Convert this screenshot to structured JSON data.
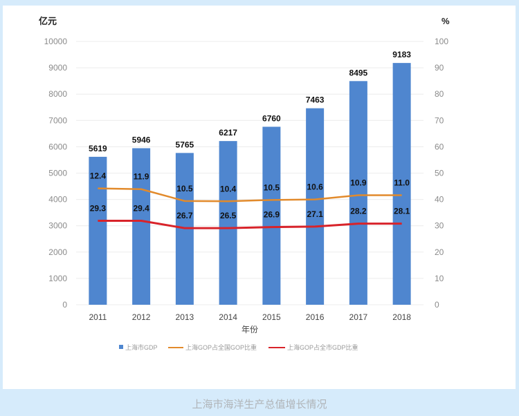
{
  "chart_data": {
    "type": "bar",
    "categories": [
      "2011",
      "2012",
      "2013",
      "2014",
      "2015",
      "2016",
      "2017",
      "2018"
    ],
    "xlabel": "年份",
    "ylabel_left": "亿元",
    "ylabel_right": "%",
    "ylim_left": [
      0,
      10000
    ],
    "ylim_right": [
      0,
      100
    ],
    "yticks_left": [
      "0",
      "1000",
      "2000",
      "3000",
      "4000",
      "5000",
      "6000",
      "7000",
      "8000",
      "9000",
      "10000"
    ],
    "yticks_right": [
      "0",
      "10",
      "20",
      "30",
      "40",
      "50",
      "60",
      "70",
      "80",
      "90",
      "100"
    ],
    "grid": true,
    "legend_position": "bottom",
    "series": [
      {
        "name": "上海市GDP",
        "kind": "bar",
        "axis": "left",
        "color": "#4f86cf",
        "values": [
          5619,
          5946,
          5765,
          6217,
          6760,
          7463,
          8495,
          9183
        ],
        "labels": [
          "5619",
          "5946",
          "5765",
          "6217",
          "6760",
          "7463",
          "8495",
          "9183"
        ]
      },
      {
        "name": "上海GOP占全国GOP比重",
        "kind": "line",
        "axis": "right",
        "color": "#e28a2b",
        "values": [
          12.4,
          11.9,
          10.5,
          10.4,
          10.5,
          10.6,
          10.9,
          11.0
        ],
        "plotted_right_axis": [
          44.2,
          43.9,
          39.4,
          39.3,
          39.8,
          40.0,
          41.6,
          41.6
        ],
        "labels": [
          "12.4",
          "11.9",
          "10.5",
          "10.4",
          "10.5",
          "10.6",
          "10.9",
          "11.0"
        ]
      },
      {
        "name": "上海GOP占全市GDP比重",
        "kind": "line",
        "axis": "right",
        "color": "#d8232a",
        "values": [
          29.3,
          29.4,
          26.7,
          26.5,
          26.9,
          27.1,
          28.2,
          28.1
        ],
        "plotted_right_axis": [
          31.9,
          31.9,
          29.1,
          29.1,
          29.5,
          29.7,
          30.8,
          30.8
        ],
        "labels": [
          "29.3",
          "29.4",
          "26.7",
          "26.5",
          "26.9",
          "27.1",
          "28.2",
          "28.1"
        ]
      }
    ]
  },
  "caption": "上海市海洋生产总值增长情况"
}
